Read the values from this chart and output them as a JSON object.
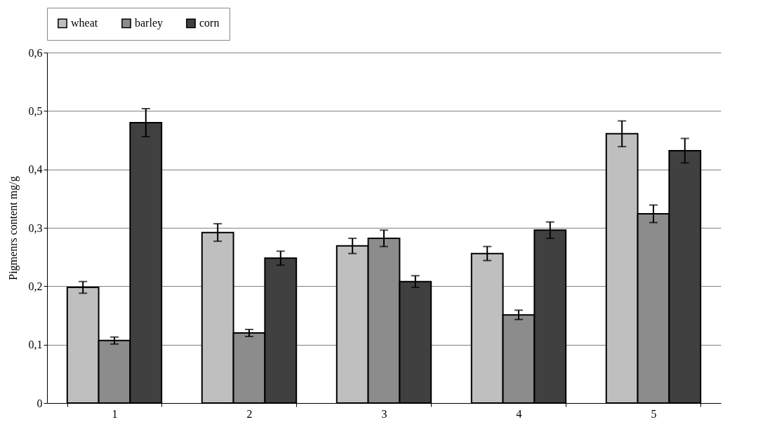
{
  "chart_data": {
    "type": "bar",
    "ylabel": "Pigmenrs content mg/g",
    "categories": [
      "1",
      "2",
      "3",
      "4",
      "5"
    ],
    "series": [
      {
        "name": "wheat",
        "color": "#bfbfbf",
        "values": [
          0.198,
          0.292,
          0.269,
          0.256,
          0.461
        ],
        "errors": [
          0.01,
          0.015,
          0.013,
          0.012,
          0.022
        ]
      },
      {
        "name": "barley",
        "color": "#8c8c8c",
        "values": [
          0.107,
          0.12,
          0.282,
          0.151,
          0.324
        ],
        "errors": [
          0.006,
          0.006,
          0.014,
          0.008,
          0.015
        ]
      },
      {
        "name": "corn",
        "color": "#404040",
        "values": [
          0.48,
          0.248,
          0.208,
          0.296,
          0.432
        ],
        "errors": [
          0.024,
          0.012,
          0.01,
          0.014,
          0.021
        ]
      }
    ],
    "ylim": [
      0,
      0.6
    ],
    "yticks": [
      0,
      {
        "value": 0.1,
        "label": "0,1"
      },
      {
        "value": 0.2,
        "label": "0,2"
      },
      {
        "value": 0.3,
        "label": "0,3"
      },
      {
        "value": 0.4,
        "label": "0,4"
      },
      {
        "value": 0.5,
        "label": "0,5"
      },
      {
        "value": 0.6,
        "label": "0,6"
      }
    ],
    "grid": "y",
    "legend": "top"
  }
}
